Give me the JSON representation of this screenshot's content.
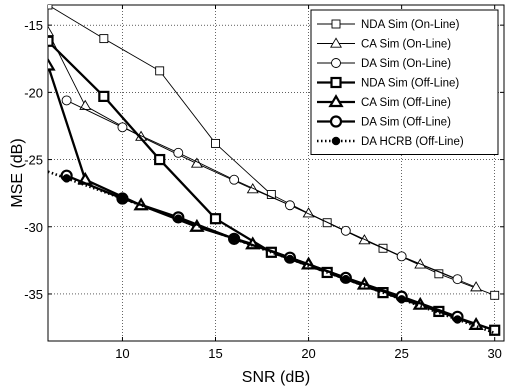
{
  "chart_data": {
    "type": "line",
    "xlabel": "SNR (dB)",
    "ylabel": "MSE (dB)",
    "xlim": [
      6,
      30.5
    ],
    "ylim": [
      -38.5,
      -13.5
    ],
    "x_ticks": [
      10,
      15,
      20,
      25,
      30
    ],
    "y_ticks": [
      -15,
      -20,
      -25,
      -30,
      -35
    ],
    "grid": true,
    "legend_position": "top-right",
    "series": [
      {
        "name": "NDA Sim (On-Line)",
        "marker": "square",
        "line": "thin",
        "points": [
          [
            6,
            -13.5
          ],
          [
            9,
            -16.0
          ],
          [
            12,
            -18.4
          ],
          [
            15,
            -23.8
          ],
          [
            18,
            -27.6
          ],
          [
            21,
            -29.7
          ],
          [
            24,
            -31.6
          ],
          [
            27,
            -33.5
          ],
          [
            30,
            -35.1
          ]
        ]
      },
      {
        "name": "CA Sim (On-Line)",
        "marker": "triangle",
        "line": "thin",
        "points": [
          [
            6,
            -15.5
          ],
          [
            8,
            -21.0
          ],
          [
            11,
            -23.3
          ],
          [
            14,
            -25.3
          ],
          [
            17,
            -27.2
          ],
          [
            20,
            -29.0
          ],
          [
            23,
            -31.0
          ],
          [
            26,
            -32.8
          ],
          [
            29,
            -34.5
          ]
        ]
      },
      {
        "name": "DA Sim (On-Line)",
        "marker": "circle",
        "line": "thin",
        "points": [
          [
            7,
            -20.6
          ],
          [
            10,
            -22.6
          ],
          [
            13,
            -24.5
          ],
          [
            16,
            -26.5
          ],
          [
            19,
            -28.4
          ],
          [
            22,
            -30.3
          ],
          [
            25,
            -32.2
          ],
          [
            28,
            -33.9
          ]
        ]
      },
      {
        "name": "NDA Sim (Off-Line)",
        "marker": "square",
        "line": "thick",
        "points": [
          [
            6,
            -16.2
          ],
          [
            9,
            -20.3
          ],
          [
            12,
            -25.0
          ],
          [
            15,
            -29.4
          ],
          [
            18,
            -31.9
          ],
          [
            21,
            -33.4
          ],
          [
            24,
            -34.9
          ],
          [
            27,
            -36.3
          ],
          [
            30,
            -37.7
          ]
        ]
      },
      {
        "name": "CA Sim (Off-Line)",
        "marker": "triangle",
        "line": "thick",
        "points": [
          [
            6,
            -18.0
          ],
          [
            8,
            -26.5
          ],
          [
            11,
            -28.4
          ],
          [
            14,
            -30.0
          ],
          [
            17,
            -31.3
          ],
          [
            20,
            -32.8
          ],
          [
            23,
            -34.3
          ],
          [
            26,
            -35.8
          ],
          [
            29,
            -37.3
          ]
        ]
      },
      {
        "name": "DA Sim (Off-Line)",
        "marker": "circle",
        "line": "thick",
        "points": [
          [
            7,
            -26.2
          ],
          [
            10,
            -27.9
          ],
          [
            13,
            -29.3
          ],
          [
            16,
            -30.9
          ],
          [
            19,
            -32.3
          ],
          [
            22,
            -33.8
          ],
          [
            25,
            -35.2
          ],
          [
            28,
            -36.7
          ]
        ]
      },
      {
        "name": "DA HCRB (Off-Line)",
        "marker": "dot",
        "line": "dotted",
        "points": [
          [
            6,
            -25.9
          ],
          [
            7,
            -26.4
          ],
          [
            8,
            -26.9
          ],
          [
            9,
            -27.4
          ],
          [
            10,
            -27.9
          ],
          [
            11,
            -28.4
          ],
          [
            12,
            -28.9
          ],
          [
            13,
            -29.4
          ],
          [
            14,
            -29.9
          ],
          [
            15,
            -30.4
          ],
          [
            16,
            -30.9
          ],
          [
            17,
            -31.4
          ],
          [
            18,
            -31.9
          ],
          [
            19,
            -32.4
          ],
          [
            20,
            -32.9
          ],
          [
            21,
            -33.4
          ],
          [
            22,
            -33.9
          ],
          [
            23,
            -34.4
          ],
          [
            24,
            -34.9
          ],
          [
            25,
            -35.4
          ],
          [
            26,
            -35.9
          ],
          [
            27,
            -36.4
          ],
          [
            28,
            -36.9
          ],
          [
            29,
            -37.4
          ],
          [
            30,
            -37.9
          ]
        ]
      }
    ]
  }
}
